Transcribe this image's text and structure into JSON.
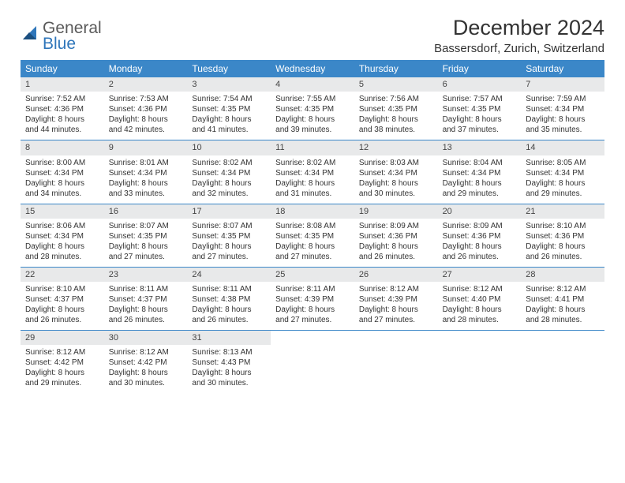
{
  "brand": {
    "part1": "General",
    "part2": "Blue"
  },
  "title": "December 2024",
  "location": "Bassersdorf, Zurich, Switzerland",
  "colors": {
    "header_bg": "#3b87c8",
    "daynum_bg": "#e8e9ea",
    "divider": "#3b87c8",
    "text": "#333333",
    "logo_gray": "#5a5a5a",
    "logo_blue": "#2f76ba"
  },
  "dayheads": [
    "Sunday",
    "Monday",
    "Tuesday",
    "Wednesday",
    "Thursday",
    "Friday",
    "Saturday"
  ],
  "weeks": [
    [
      {
        "n": "1",
        "sr": "Sunrise: 7:52 AM",
        "ss": "Sunset: 4:36 PM",
        "dl": "Daylight: 8 hours and 44 minutes."
      },
      {
        "n": "2",
        "sr": "Sunrise: 7:53 AM",
        "ss": "Sunset: 4:36 PM",
        "dl": "Daylight: 8 hours and 42 minutes."
      },
      {
        "n": "3",
        "sr": "Sunrise: 7:54 AM",
        "ss": "Sunset: 4:35 PM",
        "dl": "Daylight: 8 hours and 41 minutes."
      },
      {
        "n": "4",
        "sr": "Sunrise: 7:55 AM",
        "ss": "Sunset: 4:35 PM",
        "dl": "Daylight: 8 hours and 39 minutes."
      },
      {
        "n": "5",
        "sr": "Sunrise: 7:56 AM",
        "ss": "Sunset: 4:35 PM",
        "dl": "Daylight: 8 hours and 38 minutes."
      },
      {
        "n": "6",
        "sr": "Sunrise: 7:57 AM",
        "ss": "Sunset: 4:35 PM",
        "dl": "Daylight: 8 hours and 37 minutes."
      },
      {
        "n": "7",
        "sr": "Sunrise: 7:59 AM",
        "ss": "Sunset: 4:34 PM",
        "dl": "Daylight: 8 hours and 35 minutes."
      }
    ],
    [
      {
        "n": "8",
        "sr": "Sunrise: 8:00 AM",
        "ss": "Sunset: 4:34 PM",
        "dl": "Daylight: 8 hours and 34 minutes."
      },
      {
        "n": "9",
        "sr": "Sunrise: 8:01 AM",
        "ss": "Sunset: 4:34 PM",
        "dl": "Daylight: 8 hours and 33 minutes."
      },
      {
        "n": "10",
        "sr": "Sunrise: 8:02 AM",
        "ss": "Sunset: 4:34 PM",
        "dl": "Daylight: 8 hours and 32 minutes."
      },
      {
        "n": "11",
        "sr": "Sunrise: 8:02 AM",
        "ss": "Sunset: 4:34 PM",
        "dl": "Daylight: 8 hours and 31 minutes."
      },
      {
        "n": "12",
        "sr": "Sunrise: 8:03 AM",
        "ss": "Sunset: 4:34 PM",
        "dl": "Daylight: 8 hours and 30 minutes."
      },
      {
        "n": "13",
        "sr": "Sunrise: 8:04 AM",
        "ss": "Sunset: 4:34 PM",
        "dl": "Daylight: 8 hours and 29 minutes."
      },
      {
        "n": "14",
        "sr": "Sunrise: 8:05 AM",
        "ss": "Sunset: 4:34 PM",
        "dl": "Daylight: 8 hours and 29 minutes."
      }
    ],
    [
      {
        "n": "15",
        "sr": "Sunrise: 8:06 AM",
        "ss": "Sunset: 4:34 PM",
        "dl": "Daylight: 8 hours and 28 minutes."
      },
      {
        "n": "16",
        "sr": "Sunrise: 8:07 AM",
        "ss": "Sunset: 4:35 PM",
        "dl": "Daylight: 8 hours and 27 minutes."
      },
      {
        "n": "17",
        "sr": "Sunrise: 8:07 AM",
        "ss": "Sunset: 4:35 PM",
        "dl": "Daylight: 8 hours and 27 minutes."
      },
      {
        "n": "18",
        "sr": "Sunrise: 8:08 AM",
        "ss": "Sunset: 4:35 PM",
        "dl": "Daylight: 8 hours and 27 minutes."
      },
      {
        "n": "19",
        "sr": "Sunrise: 8:09 AM",
        "ss": "Sunset: 4:36 PM",
        "dl": "Daylight: 8 hours and 26 minutes."
      },
      {
        "n": "20",
        "sr": "Sunrise: 8:09 AM",
        "ss": "Sunset: 4:36 PM",
        "dl": "Daylight: 8 hours and 26 minutes."
      },
      {
        "n": "21",
        "sr": "Sunrise: 8:10 AM",
        "ss": "Sunset: 4:36 PM",
        "dl": "Daylight: 8 hours and 26 minutes."
      }
    ],
    [
      {
        "n": "22",
        "sr": "Sunrise: 8:10 AM",
        "ss": "Sunset: 4:37 PM",
        "dl": "Daylight: 8 hours and 26 minutes."
      },
      {
        "n": "23",
        "sr": "Sunrise: 8:11 AM",
        "ss": "Sunset: 4:37 PM",
        "dl": "Daylight: 8 hours and 26 minutes."
      },
      {
        "n": "24",
        "sr": "Sunrise: 8:11 AM",
        "ss": "Sunset: 4:38 PM",
        "dl": "Daylight: 8 hours and 26 minutes."
      },
      {
        "n": "25",
        "sr": "Sunrise: 8:11 AM",
        "ss": "Sunset: 4:39 PM",
        "dl": "Daylight: 8 hours and 27 minutes."
      },
      {
        "n": "26",
        "sr": "Sunrise: 8:12 AM",
        "ss": "Sunset: 4:39 PM",
        "dl": "Daylight: 8 hours and 27 minutes."
      },
      {
        "n": "27",
        "sr": "Sunrise: 8:12 AM",
        "ss": "Sunset: 4:40 PM",
        "dl": "Daylight: 8 hours and 28 minutes."
      },
      {
        "n": "28",
        "sr": "Sunrise: 8:12 AM",
        "ss": "Sunset: 4:41 PM",
        "dl": "Daylight: 8 hours and 28 minutes."
      }
    ],
    [
      {
        "n": "29",
        "sr": "Sunrise: 8:12 AM",
        "ss": "Sunset: 4:42 PM",
        "dl": "Daylight: 8 hours and 29 minutes."
      },
      {
        "n": "30",
        "sr": "Sunrise: 8:12 AM",
        "ss": "Sunset: 4:42 PM",
        "dl": "Daylight: 8 hours and 30 minutes."
      },
      {
        "n": "31",
        "sr": "Sunrise: 8:13 AM",
        "ss": "Sunset: 4:43 PM",
        "dl": "Daylight: 8 hours and 30 minutes."
      },
      {
        "empty": true
      },
      {
        "empty": true
      },
      {
        "empty": true
      },
      {
        "empty": true
      }
    ]
  ]
}
